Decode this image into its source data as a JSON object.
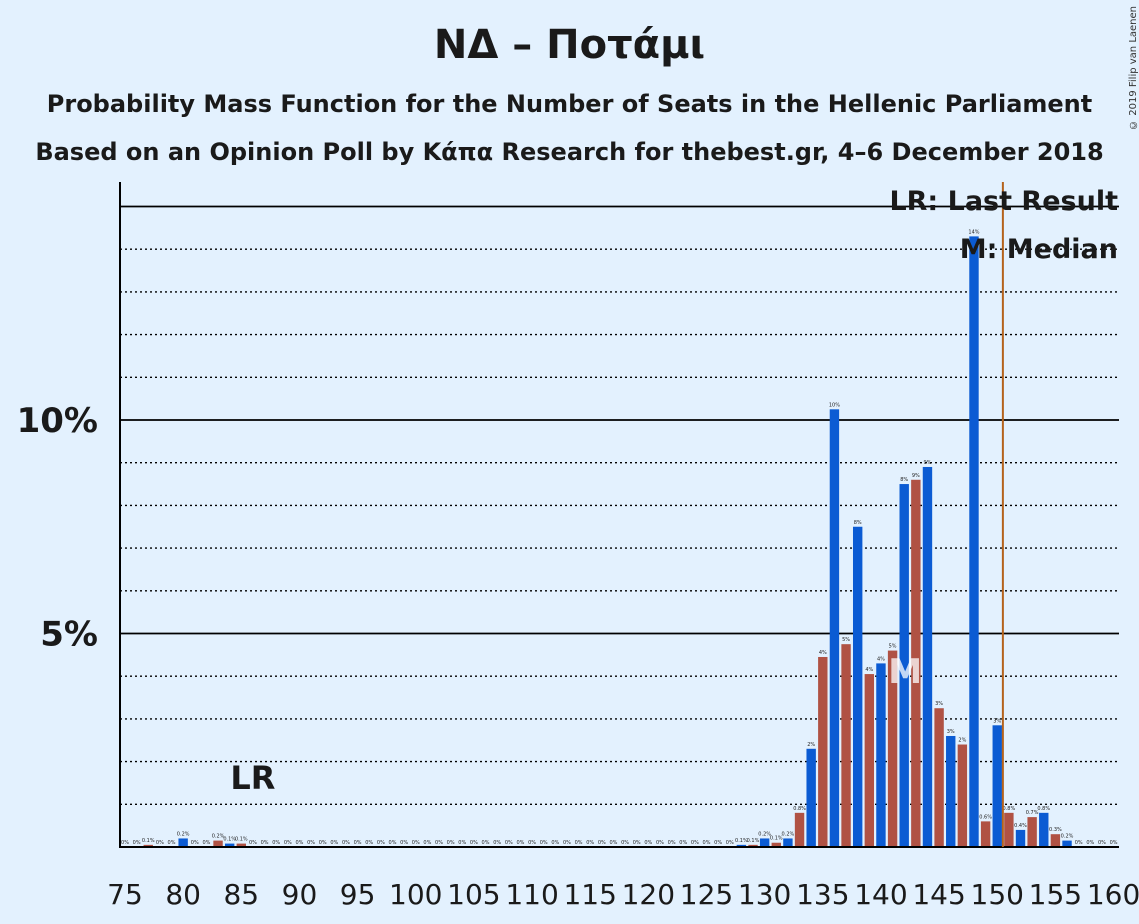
{
  "title": "ΝΔ – Ποτάμι",
  "subtitle1": "Probability Mass Function for the Number of Seats in the Hellenic Parliament",
  "subtitle2": "Based on an Opinion Poll by Κάπα Research for thebest.gr, 4–6 December 2018",
  "copyright": "© 2019 Filip van Laenen",
  "legend": {
    "last_result": "LR: Last Result",
    "median": "M: Median"
  },
  "markers": {
    "last_result_label": "LR",
    "last_result_seat": 86,
    "median_label": "M",
    "median_seat": 142,
    "majority_line_seat": 151
  },
  "colors": {
    "background": "#e3f1fe",
    "blue": "#0b5bd3",
    "red": "#b05244",
    "majority_line": "#b4621c"
  },
  "chart_data": {
    "type": "bar",
    "xlabel": "",
    "ylabel": "",
    "x_ticks": [
      "75",
      "80",
      "85",
      "90",
      "95",
      "100",
      "105",
      "110",
      "115",
      "120",
      "125",
      "130",
      "135",
      "140",
      "145",
      "150",
      "155",
      "160"
    ],
    "y_ticks": [
      "5%",
      "10%"
    ],
    "ylim": [
      0,
      15.5
    ],
    "x_range": [
      75,
      160
    ],
    "grid": "dotted every 1%, solid at 5% and 10%",
    "legend_placement": "top-right",
    "bars": [
      {
        "seat": 75,
        "value": 0,
        "label": "0%"
      },
      {
        "seat": 76,
        "value": 0,
        "label": "0%"
      },
      {
        "seat": 77,
        "value": 0.05,
        "label": "0.1%"
      },
      {
        "seat": 78,
        "value": 0,
        "label": "0%"
      },
      {
        "seat": 79,
        "value": 0,
        "label": "0%"
      },
      {
        "seat": 80,
        "value": 0.2,
        "label": "0.2%"
      },
      {
        "seat": 81,
        "value": 0,
        "label": "0%"
      },
      {
        "seat": 82,
        "value": 0,
        "label": "0%"
      },
      {
        "seat": 83,
        "value": 0.15,
        "label": "0.2%"
      },
      {
        "seat": 84,
        "value": 0.08,
        "label": "0.1%"
      },
      {
        "seat": 85,
        "value": 0.08,
        "label": "0.1%"
      },
      {
        "seat": 86,
        "value": 0,
        "label": "0%"
      },
      {
        "seat": 87,
        "value": 0,
        "label": "0%"
      },
      {
        "seat": 88,
        "value": 0,
        "label": "0%"
      },
      {
        "seat": 89,
        "value": 0,
        "label": "0%"
      },
      {
        "seat": 90,
        "value": 0,
        "label": "0%"
      },
      {
        "seat": 91,
        "value": 0,
        "label": "0%"
      },
      {
        "seat": 92,
        "value": 0,
        "label": "0%"
      },
      {
        "seat": 93,
        "value": 0,
        "label": "0%"
      },
      {
        "seat": 94,
        "value": 0,
        "label": "0%"
      },
      {
        "seat": 95,
        "value": 0,
        "label": "0%"
      },
      {
        "seat": 96,
        "value": 0,
        "label": "0%"
      },
      {
        "seat": 97,
        "value": 0,
        "label": "0%"
      },
      {
        "seat": 98,
        "value": 0,
        "label": "0%"
      },
      {
        "seat": 99,
        "value": 0,
        "label": "0%"
      },
      {
        "seat": 100,
        "value": 0,
        "label": "0%"
      },
      {
        "seat": 101,
        "value": 0,
        "label": "0%"
      },
      {
        "seat": 102,
        "value": 0,
        "label": "0%"
      },
      {
        "seat": 103,
        "value": 0,
        "label": "0%"
      },
      {
        "seat": 104,
        "value": 0,
        "label": "0%"
      },
      {
        "seat": 105,
        "value": 0,
        "label": "0%"
      },
      {
        "seat": 106,
        "value": 0,
        "label": "0%"
      },
      {
        "seat": 107,
        "value": 0,
        "label": "0%"
      },
      {
        "seat": 108,
        "value": 0,
        "label": "0%"
      },
      {
        "seat": 109,
        "value": 0,
        "label": "0%"
      },
      {
        "seat": 110,
        "value": 0,
        "label": "0%"
      },
      {
        "seat": 111,
        "value": 0,
        "label": "0%"
      },
      {
        "seat": 112,
        "value": 0,
        "label": "0%"
      },
      {
        "seat": 113,
        "value": 0,
        "label": "0%"
      },
      {
        "seat": 114,
        "value": 0,
        "label": "0%"
      },
      {
        "seat": 115,
        "value": 0,
        "label": "0%"
      },
      {
        "seat": 116,
        "value": 0,
        "label": "0%"
      },
      {
        "seat": 117,
        "value": 0,
        "label": "0%"
      },
      {
        "seat": 118,
        "value": 0,
        "label": "0%"
      },
      {
        "seat": 119,
        "value": 0,
        "label": "0%"
      },
      {
        "seat": 120,
        "value": 0,
        "label": "0%"
      },
      {
        "seat": 121,
        "value": 0,
        "label": "0%"
      },
      {
        "seat": 122,
        "value": 0,
        "label": "0%"
      },
      {
        "seat": 123,
        "value": 0,
        "label": "0%"
      },
      {
        "seat": 124,
        "value": 0,
        "label": "0%"
      },
      {
        "seat": 125,
        "value": 0,
        "label": "0%"
      },
      {
        "seat": 126,
        "value": 0,
        "label": "0%"
      },
      {
        "seat": 127,
        "value": 0,
        "label": "0%"
      },
      {
        "seat": 128,
        "value": 0.05,
        "label": "0.1%"
      },
      {
        "seat": 129,
        "value": 0.05,
        "label": "0.1%"
      },
      {
        "seat": 130,
        "value": 0.2,
        "label": "0.2%"
      },
      {
        "seat": 131,
        "value": 0.1,
        "label": "0.1%"
      },
      {
        "seat": 132,
        "value": 0.2,
        "label": "0.2%"
      },
      {
        "seat": 133,
        "value": 0.8,
        "label": "0.8%"
      },
      {
        "seat": 134,
        "value": 2.3,
        "label": "2%"
      },
      {
        "seat": 135,
        "value": 4.45,
        "label": "4%"
      },
      {
        "seat": 136,
        "value": 10.25,
        "label": "10%"
      },
      {
        "seat": 137,
        "value": 4.75,
        "label": "5%"
      },
      {
        "seat": 138,
        "value": 7.5,
        "label": "8%"
      },
      {
        "seat": 139,
        "value": 4.05,
        "label": "4%"
      },
      {
        "seat": 140,
        "value": 4.3,
        "label": "4%"
      },
      {
        "seat": 141,
        "value": 4.6,
        "label": "5%"
      },
      {
        "seat": 142,
        "value": 8.5,
        "label": "8%"
      },
      {
        "seat": 143,
        "value": 8.6,
        "label": "9%"
      },
      {
        "seat": 144,
        "value": 8.9,
        "label": "9%"
      },
      {
        "seat": 145,
        "value": 3.25,
        "label": "3%"
      },
      {
        "seat": 146,
        "value": 2.6,
        "label": "3%"
      },
      {
        "seat": 147,
        "value": 2.4,
        "label": "2%"
      },
      {
        "seat": 148,
        "value": 14.3,
        "label": "14%"
      },
      {
        "seat": 149,
        "value": 0.6,
        "label": "0.6%"
      },
      {
        "seat": 150,
        "value": 2.85,
        "label": "3%"
      },
      {
        "seat": 151,
        "value": 0.8,
        "label": "0.8%"
      },
      {
        "seat": 152,
        "value": 0.4,
        "label": "0.4%"
      },
      {
        "seat": 153,
        "value": 0.7,
        "label": "0.7%"
      },
      {
        "seat": 154,
        "value": 0.8,
        "label": "0.8%"
      },
      {
        "seat": 155,
        "value": 0.3,
        "label": "0.3%"
      },
      {
        "seat": 156,
        "value": 0.15,
        "label": "0.2%"
      },
      {
        "seat": 157,
        "value": 0,
        "label": "0%"
      },
      {
        "seat": 158,
        "value": 0,
        "label": "0%"
      },
      {
        "seat": 159,
        "value": 0,
        "label": "0%"
      },
      {
        "seat": 160,
        "value": 0,
        "label": "0%"
      }
    ]
  }
}
